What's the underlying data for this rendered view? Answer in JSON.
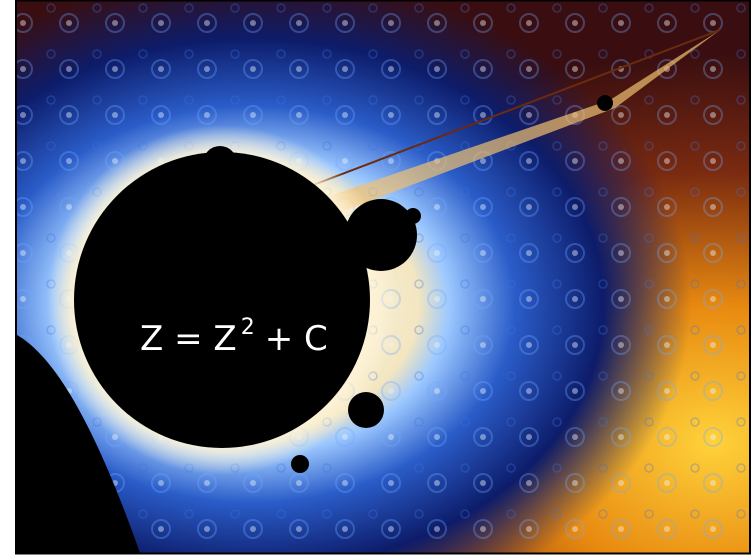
{
  "formula": {
    "base": "Z = Z",
    "exponent": "2",
    "rest": "+ C"
  }
}
